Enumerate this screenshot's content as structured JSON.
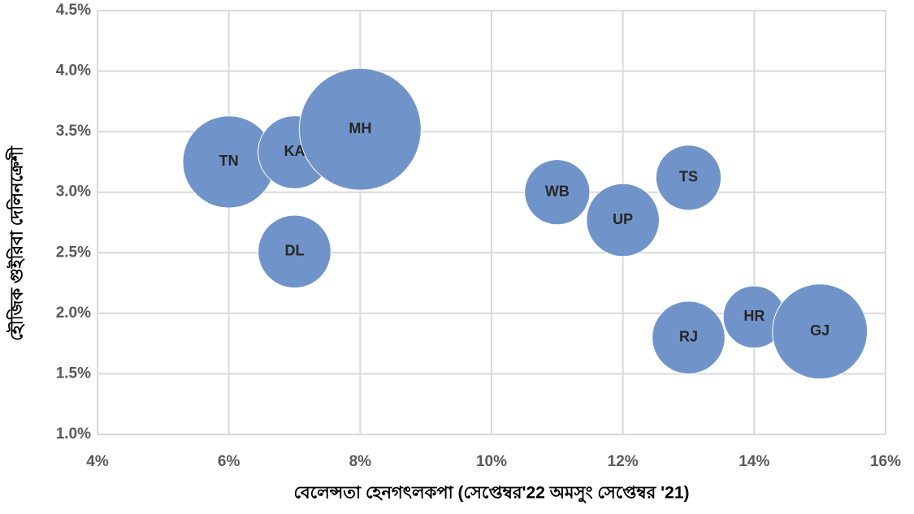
{
  "chart_data": {
    "type": "bubble",
    "xlabel": "বেলেন্সতা হেনগৎলকপা (সেপ্তেম্বর'22 অমসুং সেপ্তেম্বর '21)",
    "ylabel": "হৌজিক গুইরিবা দেলিনক্রেশী",
    "categories": [
      "TN",
      "KA",
      "MH",
      "DL",
      "WB",
      "UP",
      "TS",
      "HR",
      "RJ",
      "GJ"
    ],
    "x": [
      6,
      7,
      8,
      7,
      11,
      12,
      13,
      14,
      13,
      15
    ],
    "values": [
      3.25,
      3.33,
      3.52,
      2.51,
      3.0,
      2.77,
      3.12,
      1.97,
      1.8,
      1.85
    ],
    "sizes": [
      3.2,
      2.0,
      5.6,
      2.0,
      1.6,
      2.0,
      1.6,
      1.45,
      2.0,
      3.4
    ],
    "color": "#7094c9",
    "xlim": [
      4,
      16
    ],
    "xticks": [
      {
        "value": 4,
        "label": "4%"
      },
      {
        "value": 6,
        "label": "6%"
      },
      {
        "value": 8,
        "label": "8%"
      },
      {
        "value": 10,
        "label": "10%"
      },
      {
        "value": 12,
        "label": "12%"
      },
      {
        "value": 14,
        "label": "14%"
      },
      {
        "value": 16,
        "label": "16%"
      }
    ],
    "ylim": [
      1.0,
      4.5
    ],
    "yticks": [
      {
        "value": 1.0,
        "label": "1.0%"
      },
      {
        "value": 1.5,
        "label": "1.5%"
      },
      {
        "value": 2.0,
        "label": "2.0%"
      },
      {
        "value": 2.5,
        "label": "2.5%"
      },
      {
        "value": 3.0,
        "label": "3.0%"
      },
      {
        "value": 3.5,
        "label": "3.5%"
      },
      {
        "value": 4.0,
        "label": "4.0%"
      },
      {
        "value": 4.5,
        "label": "4.5%"
      }
    ],
    "grid": true
  }
}
